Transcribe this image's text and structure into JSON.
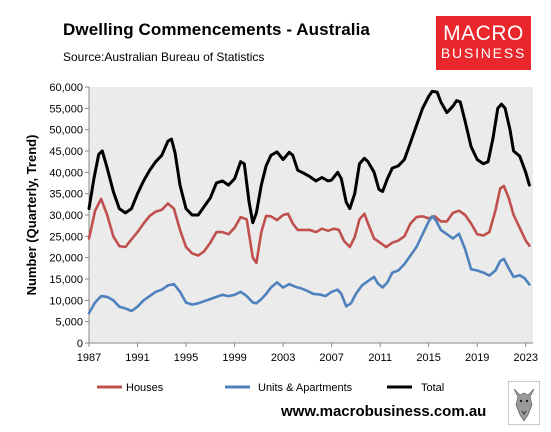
{
  "header": {
    "title": "Dwelling Commencements - Australia",
    "subtitle": "Source:Australian Bureau of Statistics",
    "logo_line1": "MACRO",
    "logo_line2": "BUSINESS"
  },
  "footer": {
    "url": "www.macrobusiness.com.au"
  },
  "chart_data": {
    "type": "line",
    "title": "Dwelling Commencements - Australia",
    "subtitle": "Source:Australian Bureau of Statistics",
    "ylabel": "Number (Quarterly, Trend)",
    "xlabel": "",
    "ylim": [
      0,
      60000
    ],
    "xlim": [
      1987,
      2023.6
    ],
    "y_ticks": [
      0,
      5000,
      10000,
      15000,
      20000,
      25000,
      30000,
      35000,
      40000,
      45000,
      50000,
      55000,
      60000
    ],
    "x_ticks": [
      1987,
      1991,
      1995,
      1999,
      2003,
      2007,
      2011,
      2015,
      2019,
      2023
    ],
    "grid": false,
    "legend_position": "bottom",
    "plot_background": "#ebebeb",
    "series": [
      {
        "name": "Houses",
        "color": "#c0504d",
        "points": [
          [
            1987.0,
            24500
          ],
          [
            1987.5,
            31000
          ],
          [
            1988.0,
            33800
          ],
          [
            1988.5,
            30000
          ],
          [
            1989.0,
            25000
          ],
          [
            1989.5,
            22700
          ],
          [
            1990.0,
            22500
          ],
          [
            1990.5,
            24300
          ],
          [
            1991.0,
            26000
          ],
          [
            1991.5,
            28000
          ],
          [
            1992.0,
            29800
          ],
          [
            1992.5,
            30800
          ],
          [
            1993.0,
            31200
          ],
          [
            1993.5,
            32700
          ],
          [
            1994.0,
            31500
          ],
          [
            1994.5,
            26500
          ],
          [
            1995.0,
            22500
          ],
          [
            1995.5,
            21000
          ],
          [
            1996.0,
            20500
          ],
          [
            1996.5,
            21500
          ],
          [
            1997.0,
            23500
          ],
          [
            1997.5,
            26000
          ],
          [
            1998.0,
            26000
          ],
          [
            1998.5,
            25500
          ],
          [
            1999.0,
            27000
          ],
          [
            1999.5,
            29500
          ],
          [
            2000.0,
            29000
          ],
          [
            2000.5,
            20000
          ],
          [
            2000.8,
            18800
          ],
          [
            2001.2,
            26000
          ],
          [
            2001.6,
            29800
          ],
          [
            2002.0,
            29700
          ],
          [
            2002.5,
            28800
          ],
          [
            2003.0,
            30000
          ],
          [
            2003.4,
            30300
          ],
          [
            2003.8,
            28000
          ],
          [
            2004.2,
            26500
          ],
          [
            2004.7,
            26500
          ],
          [
            2005.2,
            26500
          ],
          [
            2005.7,
            26000
          ],
          [
            2006.2,
            26800
          ],
          [
            2006.7,
            26300
          ],
          [
            2007.2,
            26800
          ],
          [
            2007.6,
            26500
          ],
          [
            2008.0,
            24000
          ],
          [
            2008.5,
            22500
          ],
          [
            2008.9,
            24800
          ],
          [
            2009.3,
            29000
          ],
          [
            2009.7,
            30300
          ],
          [
            2010.0,
            28000
          ],
          [
            2010.5,
            24500
          ],
          [
            2011.0,
            23500
          ],
          [
            2011.5,
            22500
          ],
          [
            2012.0,
            23500
          ],
          [
            2012.5,
            24000
          ],
          [
            2013.0,
            25000
          ],
          [
            2013.5,
            28000
          ],
          [
            2014.0,
            29500
          ],
          [
            2014.5,
            29700
          ],
          [
            2015.0,
            29200
          ],
          [
            2015.5,
            29700
          ],
          [
            2016.0,
            28500
          ],
          [
            2016.5,
            28500
          ],
          [
            2017.0,
            30500
          ],
          [
            2017.5,
            31000
          ],
          [
            2018.0,
            30000
          ],
          [
            2018.5,
            28000
          ],
          [
            2019.0,
            25500
          ],
          [
            2019.5,
            25200
          ],
          [
            2020.0,
            26000
          ],
          [
            2020.5,
            31000
          ],
          [
            2020.9,
            36200
          ],
          [
            2021.2,
            36800
          ],
          [
            2021.6,
            34000
          ],
          [
            2022.0,
            30000
          ],
          [
            2022.5,
            27000
          ],
          [
            2023.0,
            24000
          ],
          [
            2023.3,
            22800
          ]
        ]
      },
      {
        "name": "Units & Apartments",
        "color": "#4f81bd",
        "points": [
          [
            1987.0,
            7000
          ],
          [
            1987.5,
            9500
          ],
          [
            1988.0,
            11000
          ],
          [
            1988.5,
            10800
          ],
          [
            1989.0,
            10000
          ],
          [
            1989.5,
            8500
          ],
          [
            1990.0,
            8100
          ],
          [
            1990.5,
            7500
          ],
          [
            1991.0,
            8500
          ],
          [
            1991.5,
            10000
          ],
          [
            1992.0,
            11000
          ],
          [
            1992.5,
            12000
          ],
          [
            1993.0,
            12500
          ],
          [
            1993.5,
            13500
          ],
          [
            1994.0,
            13800
          ],
          [
            1994.5,
            12000
          ],
          [
            1995.0,
            9500
          ],
          [
            1995.5,
            9000
          ],
          [
            1996.0,
            9300
          ],
          [
            1996.5,
            9800
          ],
          [
            1997.0,
            10300
          ],
          [
            1997.5,
            10800
          ],
          [
            1998.0,
            11300
          ],
          [
            1998.5,
            11000
          ],
          [
            1999.0,
            11300
          ],
          [
            1999.5,
            12000
          ],
          [
            2000.0,
            11000
          ],
          [
            2000.5,
            9500
          ],
          [
            2000.8,
            9300
          ],
          [
            2001.2,
            10300
          ],
          [
            2001.6,
            11500
          ],
          [
            2002.0,
            13000
          ],
          [
            2002.5,
            14200
          ],
          [
            2003.0,
            13000
          ],
          [
            2003.5,
            13800
          ],
          [
            2004.0,
            13200
          ],
          [
            2004.5,
            12800
          ],
          [
            2005.0,
            12200
          ],
          [
            2005.5,
            11500
          ],
          [
            2006.0,
            11400
          ],
          [
            2006.5,
            11000
          ],
          [
            2007.0,
            12000
          ],
          [
            2007.5,
            12500
          ],
          [
            2007.8,
            11500
          ],
          [
            2008.2,
            8600
          ],
          [
            2008.6,
            9300
          ],
          [
            2009.0,
            11500
          ],
          [
            2009.5,
            13500
          ],
          [
            2010.0,
            14500
          ],
          [
            2010.5,
            15500
          ],
          [
            2010.8,
            14000
          ],
          [
            2011.2,
            13000
          ],
          [
            2011.6,
            14200
          ],
          [
            2012.0,
            16500
          ],
          [
            2012.5,
            17000
          ],
          [
            2013.0,
            18500
          ],
          [
            2013.5,
            20500
          ],
          [
            2014.0,
            22500
          ],
          [
            2014.5,
            25500
          ],
          [
            2015.0,
            28500
          ],
          [
            2015.3,
            29700
          ],
          [
            2015.6,
            28700
          ],
          [
            2016.0,
            26500
          ],
          [
            2016.5,
            25500
          ],
          [
            2017.0,
            24500
          ],
          [
            2017.5,
            25600
          ],
          [
            2018.0,
            22000
          ],
          [
            2018.5,
            17300
          ],
          [
            2019.0,
            17000
          ],
          [
            2019.5,
            16500
          ],
          [
            2020.0,
            15800
          ],
          [
            2020.5,
            17000
          ],
          [
            2020.9,
            19200
          ],
          [
            2021.2,
            19700
          ],
          [
            2021.6,
            17500
          ],
          [
            2022.0,
            15500
          ],
          [
            2022.5,
            15900
          ],
          [
            2022.9,
            15200
          ],
          [
            2023.3,
            13700
          ]
        ]
      },
      {
        "name": "Total",
        "color": "#000000",
        "points": [
          [
            1987.0,
            31500
          ],
          [
            1987.4,
            38500
          ],
          [
            1987.8,
            44200
          ],
          [
            1988.1,
            45000
          ],
          [
            1988.5,
            41000
          ],
          [
            1989.0,
            35500
          ],
          [
            1989.5,
            31500
          ],
          [
            1990.0,
            30500
          ],
          [
            1990.5,
            31500
          ],
          [
            1991.0,
            35000
          ],
          [
            1991.5,
            38000
          ],
          [
            1992.0,
            40500
          ],
          [
            1992.5,
            42500
          ],
          [
            1993.0,
            44000
          ],
          [
            1993.5,
            47300
          ],
          [
            1993.8,
            47800
          ],
          [
            1994.1,
            44500
          ],
          [
            1994.5,
            37000
          ],
          [
            1995.0,
            31500
          ],
          [
            1995.5,
            30000
          ],
          [
            1996.0,
            30000
          ],
          [
            1996.5,
            32000
          ],
          [
            1997.0,
            34000
          ],
          [
            1997.5,
            37500
          ],
          [
            1998.0,
            38000
          ],
          [
            1998.5,
            37000
          ],
          [
            1999.0,
            38500
          ],
          [
            1999.5,
            42500
          ],
          [
            1999.8,
            42000
          ],
          [
            2000.2,
            33000
          ],
          [
            2000.5,
            28200
          ],
          [
            2000.8,
            30500
          ],
          [
            2001.2,
            37000
          ],
          [
            2001.6,
            41500
          ],
          [
            2002.0,
            44000
          ],
          [
            2002.5,
            44800
          ],
          [
            2003.0,
            43000
          ],
          [
            2003.5,
            44700
          ],
          [
            2003.8,
            44000
          ],
          [
            2004.2,
            40500
          ],
          [
            2004.7,
            39800
          ],
          [
            2005.2,
            39000
          ],
          [
            2005.7,
            38000
          ],
          [
            2006.2,
            38800
          ],
          [
            2006.7,
            38000
          ],
          [
            2007.0,
            38200
          ],
          [
            2007.5,
            40000
          ],
          [
            2007.8,
            38500
          ],
          [
            2008.2,
            33000
          ],
          [
            2008.5,
            31500
          ],
          [
            2008.9,
            35000
          ],
          [
            2009.3,
            42000
          ],
          [
            2009.7,
            43300
          ],
          [
            2010.0,
            42500
          ],
          [
            2010.5,
            40000
          ],
          [
            2010.9,
            36000
          ],
          [
            2011.2,
            35500
          ],
          [
            2011.6,
            38500
          ],
          [
            2012.0,
            41000
          ],
          [
            2012.5,
            41500
          ],
          [
            2013.0,
            43000
          ],
          [
            2013.5,
            47000
          ],
          [
            2014.0,
            51000
          ],
          [
            2014.5,
            55000
          ],
          [
            2015.0,
            57800
          ],
          [
            2015.3,
            59000
          ],
          [
            2015.7,
            58800
          ],
          [
            2016.0,
            56500
          ],
          [
            2016.5,
            54000
          ],
          [
            2017.0,
            55500
          ],
          [
            2017.3,
            56800
          ],
          [
            2017.6,
            56500
          ],
          [
            2018.0,
            52000
          ],
          [
            2018.5,
            46000
          ],
          [
            2019.0,
            43000
          ],
          [
            2019.5,
            42000
          ],
          [
            2019.9,
            42500
          ],
          [
            2020.3,
            48000
          ],
          [
            2020.7,
            55000
          ],
          [
            2021.0,
            56000
          ],
          [
            2021.3,
            55000
          ],
          [
            2021.7,
            50000
          ],
          [
            2022.0,
            45000
          ],
          [
            2022.5,
            43800
          ],
          [
            2023.0,
            40000
          ],
          [
            2023.3,
            37000
          ]
        ]
      }
    ]
  }
}
